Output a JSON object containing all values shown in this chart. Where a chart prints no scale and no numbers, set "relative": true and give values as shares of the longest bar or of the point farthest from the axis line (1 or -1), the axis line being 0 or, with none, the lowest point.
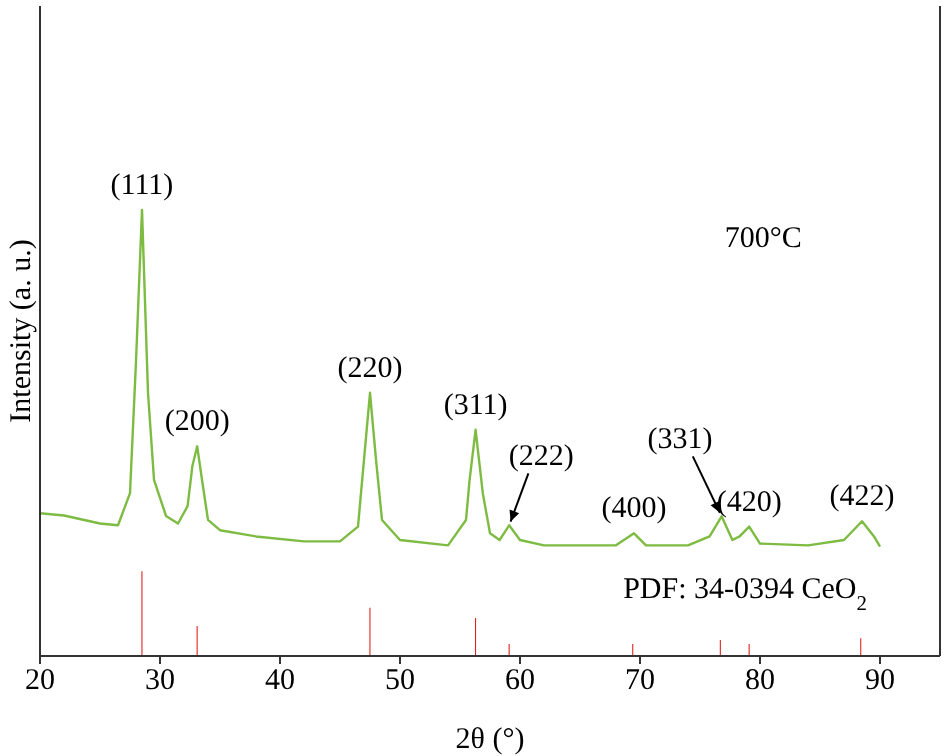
{
  "chart_data": {
    "type": "line",
    "relative": true,
    "xlabel": "2θ (°)",
    "ylabel": "Intensity (a. u.)",
    "xlim": [
      20,
      95
    ],
    "xticks": [
      20,
      30,
      40,
      50,
      60,
      70,
      80,
      90
    ],
    "series": [
      {
        "color": "#7dbb42",
        "x": [
          20,
          22,
          25,
          26.5,
          27.5,
          28,
          28.5,
          29,
          29.5,
          30.5,
          31.5,
          32.3,
          32.7,
          33.1,
          33.5,
          34,
          35,
          38,
          42,
          45,
          46.5,
          47,
          47.5,
          48,
          48.5,
          50,
          54,
          55.5,
          55.8,
          56.3,
          56.9,
          57.5,
          58.3,
          59.1,
          60,
          62,
          68,
          69.5,
          70.5,
          74,
          75.8,
          76.8,
          77.7,
          78.3,
          79.1,
          80,
          84,
          87,
          88.5,
          89.5,
          90
        ],
        "values": [
          0.32,
          0.315,
          0.297,
          0.293,
          0.365,
          0.66,
          1,
          0.59,
          0.395,
          0.314,
          0.297,
          0.336,
          0.426,
          0.47,
          0.395,
          0.305,
          0.282,
          0.268,
          0.257,
          0.257,
          0.29,
          0.44,
          0.59,
          0.44,
          0.305,
          0.26,
          0.248,
          0.305,
          0.395,
          0.507,
          0.365,
          0.275,
          0.26,
          0.293,
          0.26,
          0.248,
          0.248,
          0.275,
          0.248,
          0.248,
          0.268,
          0.313,
          0.26,
          0.268,
          0.29,
          0.252,
          0.248,
          0.26,
          0.302,
          0.268,
          0.245
        ]
      },
      {
        "type": "bar",
        "color": "#e0201b",
        "x": [
          28.5,
          33.1,
          47.5,
          56.3,
          59.1,
          69.4,
          76.7,
          79.1,
          88.4
        ],
        "values": [
          0.19,
          0.067,
          0.108,
          0.085,
          0.027,
          0.027,
          0.036,
          0.027,
          0.04
        ]
      }
    ],
    "annotations": [
      {
        "text": "(111)",
        "x": 28.5,
        "y": 1
      },
      {
        "text": "(200)",
        "x": 33.1,
        "y": 0.47
      },
      {
        "text": "(220)",
        "x": 47.5,
        "y": 0.59
      },
      {
        "text": "(311)",
        "x": 56.3,
        "y": 0.507
      },
      {
        "text": "(222)",
        "x": 59.1,
        "y": 0.293
      },
      {
        "text": "(400)",
        "x": 69.5,
        "y": 0.275
      },
      {
        "text": "(331)",
        "x": 76.8,
        "y": 0.313
      },
      {
        "text": "(420)",
        "x": 79.1,
        "y": 0.29
      },
      {
        "text": "(422)",
        "x": 88.5,
        "y": 0.302
      },
      "700°C",
      "PDF: 34-0394 CeO$_{2}$"
    ]
  }
}
